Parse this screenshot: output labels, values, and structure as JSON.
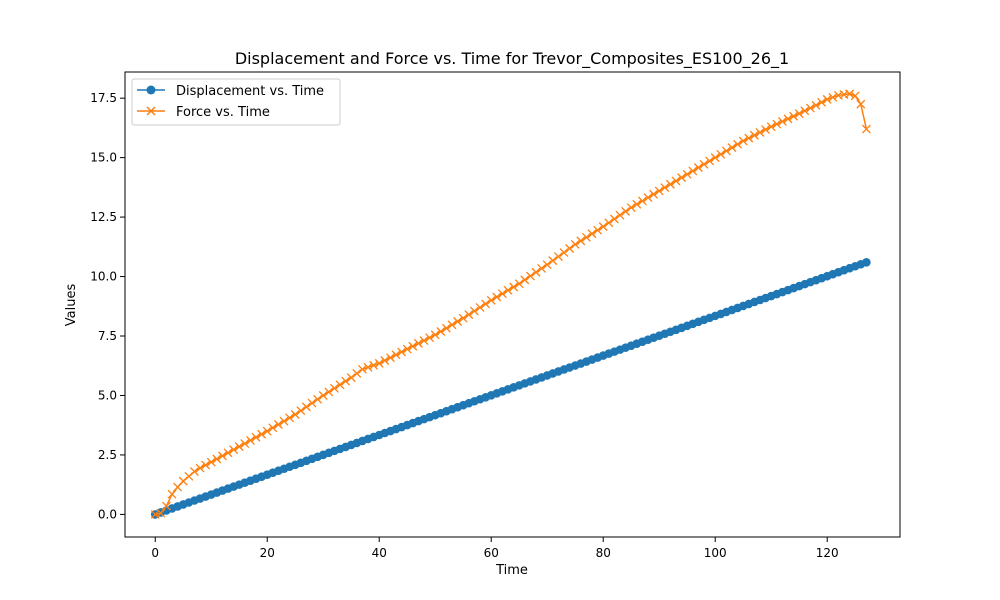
{
  "chart_data": {
    "type": "line",
    "title": "Displacement and Force vs. Time for Trevor_Composites_ES100_26_1",
    "xlabel": "Time",
    "ylabel": "Values",
    "xlim": [
      -5.4,
      133.0
    ],
    "ylim": [
      -0.95,
      18.6
    ],
    "xticks": [
      0,
      20,
      40,
      60,
      80,
      100,
      120
    ],
    "yticks": [
      0.0,
      2.5,
      5.0,
      7.5,
      10.0,
      12.5,
      15.0,
      17.5
    ],
    "xtick_labels": [
      "0",
      "20",
      "40",
      "60",
      "80",
      "100",
      "120"
    ],
    "ytick_labels": [
      "0.0",
      "2.5",
      "5.0",
      "7.5",
      "10.0",
      "12.5",
      "15.0",
      "17.5"
    ],
    "grid": false,
    "legend_position": "upper-left",
    "x_sampling": {
      "start": 0,
      "end": 127,
      "step": 1
    },
    "series": [
      {
        "name": "Displacement vs. Time",
        "color": "#1f77b4",
        "marker": "circle",
        "y_linear": {
          "start": 0.0,
          "end": 10.6
        }
      },
      {
        "name": "Force vs. Time",
        "color": "#ff7f0e",
        "marker": "x",
        "keypoints": [
          [
            0,
            0.0
          ],
          [
            1,
            0.05
          ],
          [
            2,
            0.35
          ],
          [
            3,
            0.85
          ],
          [
            4,
            1.15
          ],
          [
            5,
            1.4
          ],
          [
            6,
            1.6
          ],
          [
            7,
            1.8
          ],
          [
            8,
            1.95
          ],
          [
            10,
            2.2
          ],
          [
            15,
            2.85
          ],
          [
            20,
            3.5
          ],
          [
            25,
            4.2
          ],
          [
            30,
            5.0
          ],
          [
            35,
            5.75
          ],
          [
            37,
            6.1
          ],
          [
            40,
            6.35
          ],
          [
            45,
            6.95
          ],
          [
            50,
            7.55
          ],
          [
            55,
            8.25
          ],
          [
            60,
            9.0
          ],
          [
            65,
            9.7
          ],
          [
            70,
            10.5
          ],
          [
            75,
            11.35
          ],
          [
            80,
            12.1
          ],
          [
            85,
            12.9
          ],
          [
            90,
            13.6
          ],
          [
            95,
            14.3
          ],
          [
            100,
            15.0
          ],
          [
            105,
            15.7
          ],
          [
            110,
            16.3
          ],
          [
            115,
            16.85
          ],
          [
            118,
            17.2
          ],
          [
            120,
            17.45
          ],
          [
            122,
            17.62
          ],
          [
            124,
            17.68
          ],
          [
            125,
            17.6
          ],
          [
            126,
            17.25
          ],
          [
            127,
            16.2
          ]
        ]
      }
    ]
  }
}
